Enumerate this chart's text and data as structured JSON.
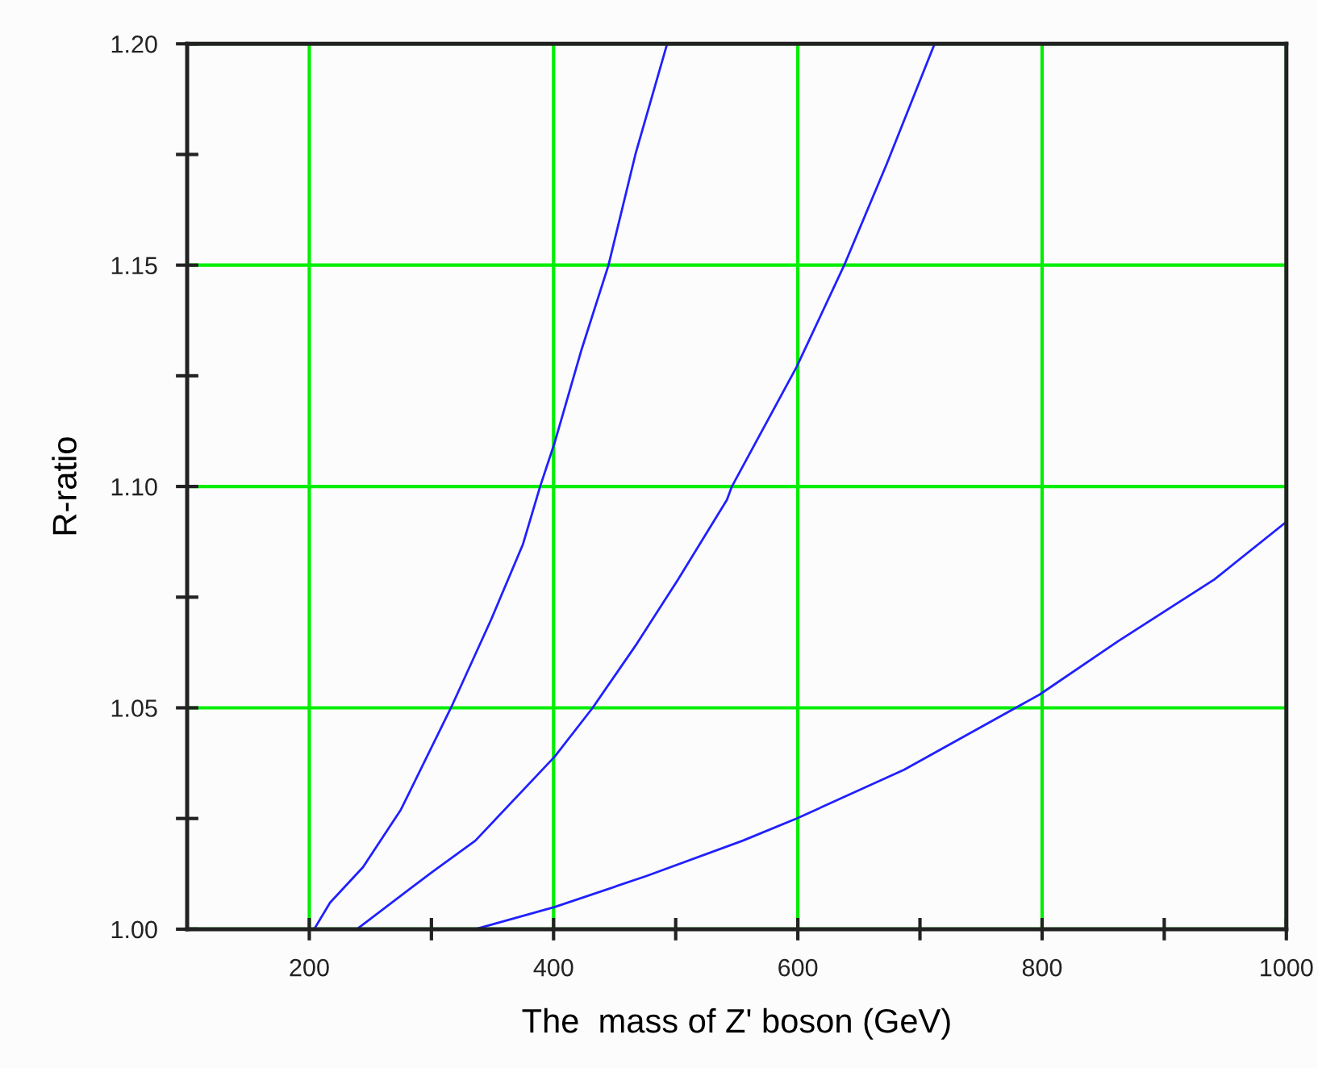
{
  "chart_data": {
    "type": "line",
    "xlabel": "The  mass of Z' boson (GeV)",
    "ylabel": "R-ratio",
    "xlim": [
      100,
      1000
    ],
    "ylim": [
      1.0,
      1.2
    ],
    "xticks": [
      {
        "value": 200,
        "label": "200"
      },
      {
        "value": 300,
        "label": null
      },
      {
        "value": 400,
        "label": "400"
      },
      {
        "value": 500,
        "label": null
      },
      {
        "value": 600,
        "label": "600"
      },
      {
        "value": 700,
        "label": null
      },
      {
        "value": 800,
        "label": "800"
      },
      {
        "value": 900,
        "label": null
      },
      {
        "value": 1000,
        "label": "1000"
      }
    ],
    "yticks": [
      {
        "value": 1.0,
        "label": "1.00"
      },
      {
        "value": 1.025,
        "label": null
      },
      {
        "value": 1.05,
        "label": "1.05"
      },
      {
        "value": 1.075,
        "label": null
      },
      {
        "value": 1.1,
        "label": "1.10"
      },
      {
        "value": 1.125,
        "label": null
      },
      {
        "value": 1.15,
        "label": "1.15"
      },
      {
        "value": 1.175,
        "label": null
      },
      {
        "value": 1.2,
        "label": "1.20"
      }
    ],
    "grid": true,
    "marker": "none",
    "line_style": "solid",
    "series": [
      {
        "color": "#2020ff",
        "x": [
          200,
          204,
          217,
          244,
          275,
          316,
          349,
          375,
          389,
          401,
          423,
          445,
          467,
          493
        ],
        "values": [
          1.0,
          1.0,
          1.006,
          1.014,
          1.027,
          1.05,
          1.07,
          1.087,
          1.1,
          1.11,
          1.131,
          1.15,
          1.175,
          1.2
        ]
      },
      {
        "color": "#2020ff",
        "x": [
          239,
          301,
          336,
          401,
          432,
          467,
          502,
          542,
          546,
          599,
          638,
          673,
          712
        ],
        "values": [
          1.0,
          1.013,
          1.02,
          1.039,
          1.05,
          1.064,
          1.079,
          1.097,
          1.1,
          1.127,
          1.15,
          1.173,
          1.2
        ]
      },
      {
        "color": "#2020ff",
        "x": [
          336,
          401,
          476,
          555,
          599,
          687,
          798,
          862,
          941,
          1000
        ],
        "values": [
          1.0,
          1.005,
          1.012,
          1.02,
          1.025,
          1.036,
          1.053,
          1.065,
          1.079,
          1.092
        ]
      }
    ]
  }
}
